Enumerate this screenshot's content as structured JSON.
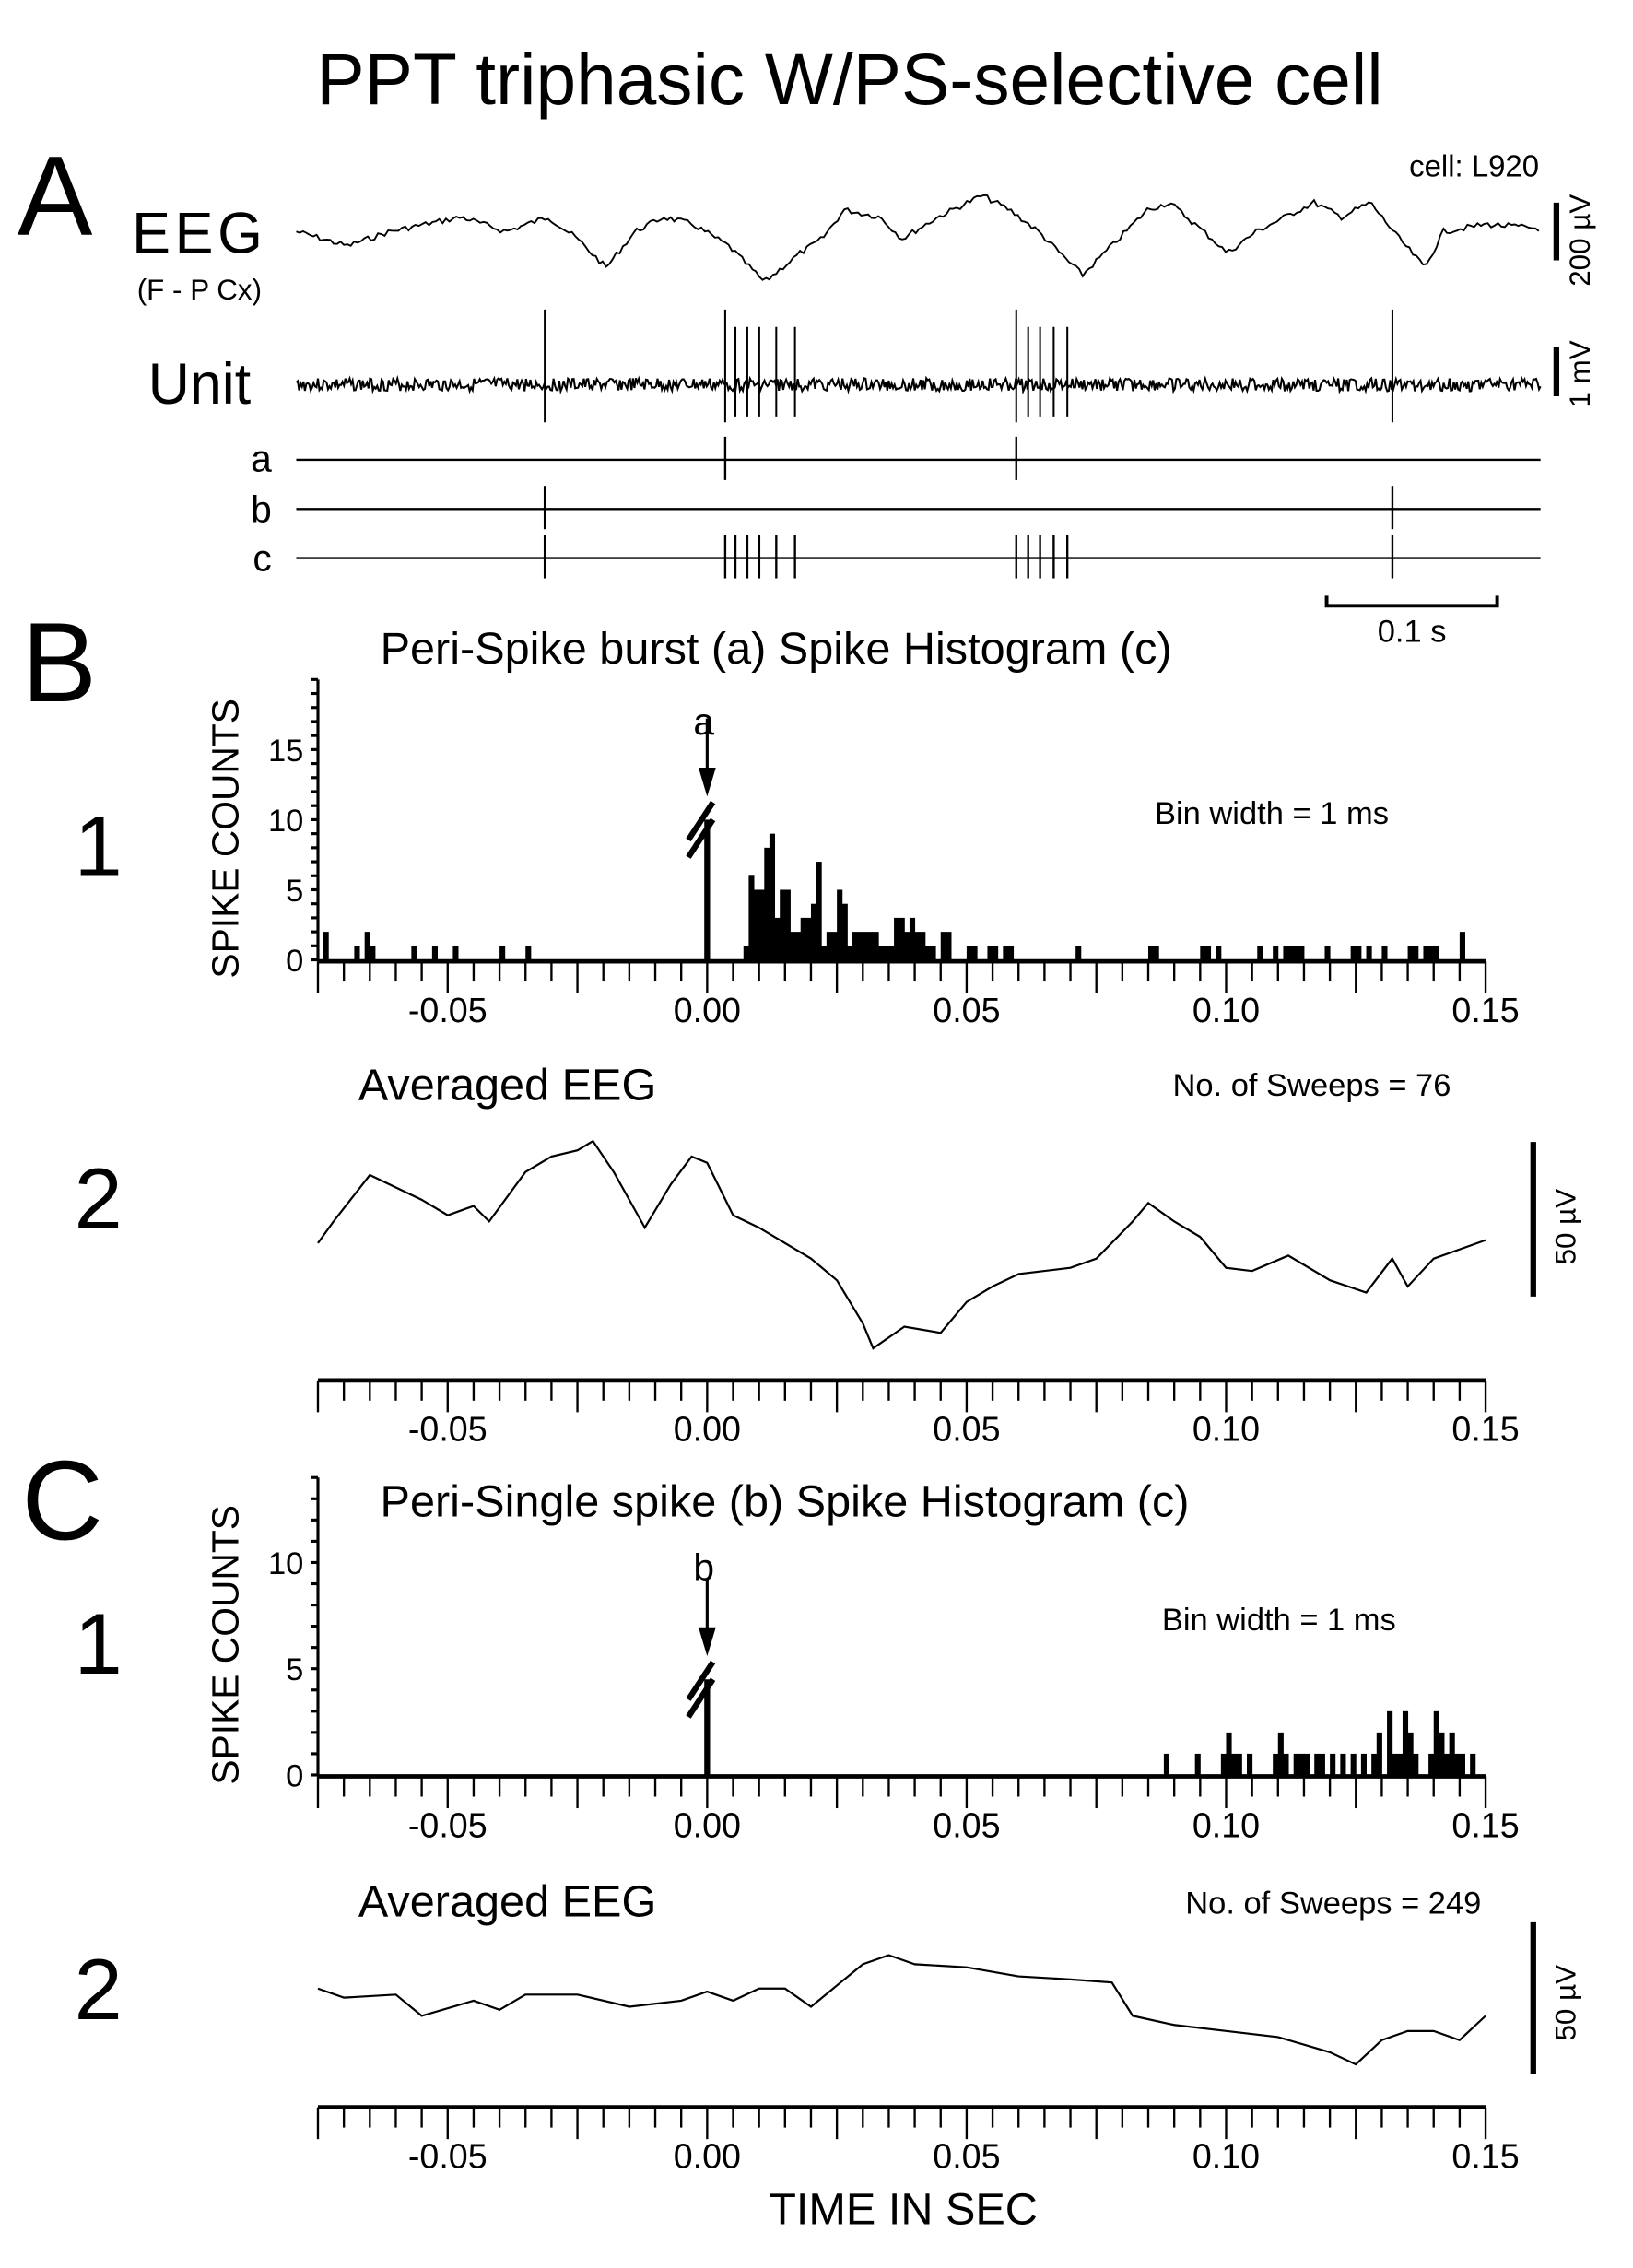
{
  "title": "PPT triphasic W/PS-selective cell",
  "panelA": {
    "letter": "A",
    "cell": "cell: L920",
    "eeg_label": "EEG",
    "eeg_sublabel": "(F - P Cx)",
    "eeg_scale": "200 µV",
    "unit_label": "Unit",
    "unit_scale": "1 mV",
    "row_labels": [
      "a",
      "b",
      "c"
    ],
    "time_scale": "0.1 s",
    "duration_ms": 731,
    "spikes_a_ms": [
      252,
      423
    ],
    "spikes_b_ms": [
      146,
      644
    ],
    "spikes_c_ms": [
      146,
      252,
      258,
      265,
      272,
      282,
      293,
      423,
      430,
      437,
      445,
      453,
      644
    ],
    "eeg_trace_uV": [
      [
        0,
        0
      ],
      [
        30,
        -50
      ],
      [
        55,
        0
      ],
      [
        97,
        50
      ],
      [
        123,
        0
      ],
      [
        148,
        50
      ],
      [
        165,
        -25
      ],
      [
        182,
        -125
      ],
      [
        199,
        0
      ],
      [
        216,
        50
      ],
      [
        233,
        25
      ],
      [
        254,
        -50
      ],
      [
        275,
        -175
      ],
      [
        296,
        -75
      ],
      [
        309,
        -25
      ],
      [
        322,
        75
      ],
      [
        343,
        50
      ],
      [
        356,
        -25
      ],
      [
        377,
        50
      ],
      [
        403,
        125
      ],
      [
        419,
        75
      ],
      [
        436,
        0
      ],
      [
        453,
        -100
      ],
      [
        462,
        -150
      ],
      [
        479,
        -50
      ],
      [
        500,
        75
      ],
      [
        513,
        100
      ],
      [
        538,
        -25
      ],
      [
        547,
        -75
      ],
      [
        564,
        0
      ],
      [
        581,
        50
      ],
      [
        598,
        100
      ],
      [
        614,
        50
      ],
      [
        631,
        100
      ],
      [
        648,
        -25
      ],
      [
        663,
        -125
      ],
      [
        674,
        0
      ],
      [
        699,
        25
      ],
      [
        731,
        10
      ]
    ]
  },
  "panelB": {
    "letter": "B",
    "title": "Peri-Spike burst (a) Spike Histogram (c)",
    "row1": "1",
    "row2": "2",
    "marker": "a",
    "bin_width": "Bin width = 1 ms",
    "avg_title": "Averaged EEG",
    "sweeps": "No. of Sweeps = 76",
    "eeg_scale": "50 µV"
  },
  "panelC": {
    "letter": "C",
    "title": "Peri-Single spike (b) Spike Histogram (c)",
    "row1": "1",
    "row2": "2",
    "marker": "b",
    "bin_width": "Bin width = 1 ms",
    "avg_title": "Averaged EEG",
    "sweeps": "No. of Sweeps = 249",
    "eeg_scale": "50 µV"
  },
  "ylabel": "SPIKE COUNTS",
  "xlabel": "TIME IN SEC",
  "x_tick_labels": [
    "-0.05",
    "0.00",
    "0.05",
    "0.10",
    "0.15"
  ],
  "chart_data": [
    {
      "type": "bar",
      "name": "B1 peri-burst histogram",
      "title": "Peri-Spike burst (a) Spike Histogram (c)",
      "xlabel": "TIME IN SEC",
      "ylabel": "SPIKE COUNTS",
      "xlim": [
        -0.075,
        0.15
      ],
      "ylim": [
        0,
        20
      ],
      "y_ticks": [
        0,
        5,
        10,
        15
      ],
      "bin_ms": 1,
      "zero_bin_off_scale": true,
      "zero_bin_shown_to": 10,
      "bins_ms_count": [
        [
          -74,
          2
        ],
        [
          -68,
          1
        ],
        [
          -66,
          2
        ],
        [
          -65,
          1
        ],
        [
          -57,
          1
        ],
        [
          -53,
          1
        ],
        [
          -49,
          1
        ],
        [
          -40,
          1
        ],
        [
          -35,
          1
        ],
        [
          7,
          1
        ],
        [
          8,
          6
        ],
        [
          9,
          5
        ],
        [
          10,
          5
        ],
        [
          11,
          8
        ],
        [
          12,
          9
        ],
        [
          13,
          3
        ],
        [
          14,
          5
        ],
        [
          15,
          5
        ],
        [
          16,
          2
        ],
        [
          17,
          2
        ],
        [
          18,
          3
        ],
        [
          19,
          3
        ],
        [
          20,
          4
        ],
        [
          21,
          7
        ],
        [
          22,
          1
        ],
        [
          23,
          2
        ],
        [
          24,
          2
        ],
        [
          25,
          5
        ],
        [
          26,
          4
        ],
        [
          27,
          1
        ],
        [
          28,
          2
        ],
        [
          29,
          2
        ],
        [
          30,
          2
        ],
        [
          31,
          2
        ],
        [
          32,
          2
        ],
        [
          33,
          1
        ],
        [
          34,
          1
        ],
        [
          35,
          1
        ],
        [
          36,
          3
        ],
        [
          37,
          3
        ],
        [
          38,
          2
        ],
        [
          39,
          3
        ],
        [
          40,
          2
        ],
        [
          41,
          2
        ],
        [
          42,
          1
        ],
        [
          43,
          1
        ],
        [
          45,
          2
        ],
        [
          46,
          2
        ],
        [
          50,
          1
        ],
        [
          51,
          1
        ],
        [
          54,
          1
        ],
        [
          55,
          1
        ],
        [
          57,
          1
        ],
        [
          58,
          1
        ],
        [
          71,
          1
        ],
        [
          85,
          1
        ],
        [
          86,
          1
        ],
        [
          95,
          1
        ],
        [
          96,
          1
        ],
        [
          98,
          1
        ],
        [
          106,
          1
        ],
        [
          109,
          1
        ],
        [
          111,
          1
        ],
        [
          112,
          1
        ],
        [
          113,
          1
        ],
        [
          114,
          1
        ],
        [
          119,
          1
        ],
        [
          124,
          1
        ],
        [
          125,
          1
        ],
        [
          127,
          1
        ],
        [
          130,
          1
        ],
        [
          135,
          1
        ],
        [
          136,
          1
        ],
        [
          138,
          1
        ],
        [
          139,
          1
        ],
        [
          140,
          1
        ],
        [
          145,
          2
        ]
      ]
    },
    {
      "type": "line",
      "name": "B2 averaged EEG",
      "title": "Averaged EEG",
      "xlim": [
        -0.075,
        0.15
      ],
      "unit": "µV",
      "points_ms_uV": [
        [
          -75,
          0
        ],
        [
          -72,
          7
        ],
        [
          -65,
          22
        ],
        [
          -55,
          14
        ],
        [
          -50,
          9
        ],
        [
          -45,
          12
        ],
        [
          -42,
          7
        ],
        [
          -35,
          23
        ],
        [
          -30,
          28
        ],
        [
          -25,
          30
        ],
        [
          -22,
          33
        ],
        [
          -18,
          23
        ],
        [
          -12,
          5
        ],
        [
          -7,
          19
        ],
        [
          -3,
          28
        ],
        [
          0,
          26
        ],
        [
          5,
          9
        ],
        [
          10,
          5
        ],
        [
          20,
          -5
        ],
        [
          25,
          -12
        ],
        [
          30,
          -26
        ],
        [
          32,
          -34
        ],
        [
          38,
          -27
        ],
        [
          45,
          -29
        ],
        [
          50,
          -19
        ],
        [
          55,
          -14
        ],
        [
          60,
          -10
        ],
        [
          70,
          -8
        ],
        [
          75,
          -5
        ],
        [
          82,
          7
        ],
        [
          85,
          13
        ],
        [
          90,
          7
        ],
        [
          95,
          2
        ],
        [
          100,
          -8
        ],
        [
          105,
          -9
        ],
        [
          112,
          -4
        ],
        [
          120,
          -12
        ],
        [
          127,
          -16
        ],
        [
          132,
          -5
        ],
        [
          135,
          -14
        ],
        [
          140,
          -5
        ],
        [
          150,
          1
        ]
      ]
    },
    {
      "type": "bar",
      "name": "C1 peri-single-spike histogram",
      "title": "Peri-Single spike (b) Spike Histogram (c)",
      "xlabel": "TIME IN SEC",
      "ylabel": "SPIKE COUNTS",
      "xlim": [
        -0.075,
        0.15
      ],
      "ylim": [
        0,
        14
      ],
      "y_ticks": [
        0,
        5,
        10
      ],
      "bin_ms": 1,
      "zero_bin_off_scale": true,
      "zero_bin_shown_to": 4.5,
      "bins_ms_count": [
        [
          88,
          1
        ],
        [
          94,
          1
        ],
        [
          99,
          1
        ],
        [
          100,
          2
        ],
        [
          101,
          1
        ],
        [
          102,
          1
        ],
        [
          104,
          1
        ],
        [
          109,
          1
        ],
        [
          110,
          2
        ],
        [
          111,
          1
        ],
        [
          113,
          1
        ],
        [
          114,
          1
        ],
        [
          115,
          1
        ],
        [
          117,
          1
        ],
        [
          118,
          1
        ],
        [
          120,
          1
        ],
        [
          122,
          1
        ],
        [
          124,
          1
        ],
        [
          126,
          1
        ],
        [
          128,
          1
        ],
        [
          129,
          2
        ],
        [
          131,
          3
        ],
        [
          132,
          1
        ],
        [
          133,
          1
        ],
        [
          134,
          3
        ],
        [
          135,
          2
        ],
        [
          136,
          1
        ],
        [
          139,
          1
        ],
        [
          140,
          3
        ],
        [
          141,
          2
        ],
        [
          142,
          1
        ],
        [
          143,
          2
        ],
        [
          144,
          1
        ],
        [
          145,
          1
        ],
        [
          147,
          1
        ]
      ]
    },
    {
      "type": "line",
      "name": "C2 averaged EEG",
      "title": "Averaged EEG",
      "xlim": [
        -0.075,
        0.15
      ],
      "unit": "µV",
      "points_ms_uV": [
        [
          -75,
          2
        ],
        [
          -70,
          -1
        ],
        [
          -60,
          0
        ],
        [
          -55,
          -7
        ],
        [
          -45,
          -2
        ],
        [
          -40,
          -5
        ],
        [
          -35,
          0
        ],
        [
          -25,
          0
        ],
        [
          -15,
          -4
        ],
        [
          -5,
          -2
        ],
        [
          0,
          1
        ],
        [
          5,
          -2
        ],
        [
          10,
          2
        ],
        [
          15,
          2
        ],
        [
          20,
          -4
        ],
        [
          25,
          3
        ],
        [
          30,
          10
        ],
        [
          35,
          13
        ],
        [
          40,
          10
        ],
        [
          50,
          9
        ],
        [
          60,
          6
        ],
        [
          70,
          5
        ],
        [
          78,
          4
        ],
        [
          82,
          -7
        ],
        [
          90,
          -10
        ],
        [
          100,
          -12
        ],
        [
          110,
          -14
        ],
        [
          120,
          -19
        ],
        [
          125,
          -23
        ],
        [
          130,
          -15
        ],
        [
          135,
          -12
        ],
        [
          140,
          -12
        ],
        [
          145,
          -15
        ],
        [
          150,
          -7
        ]
      ]
    }
  ]
}
